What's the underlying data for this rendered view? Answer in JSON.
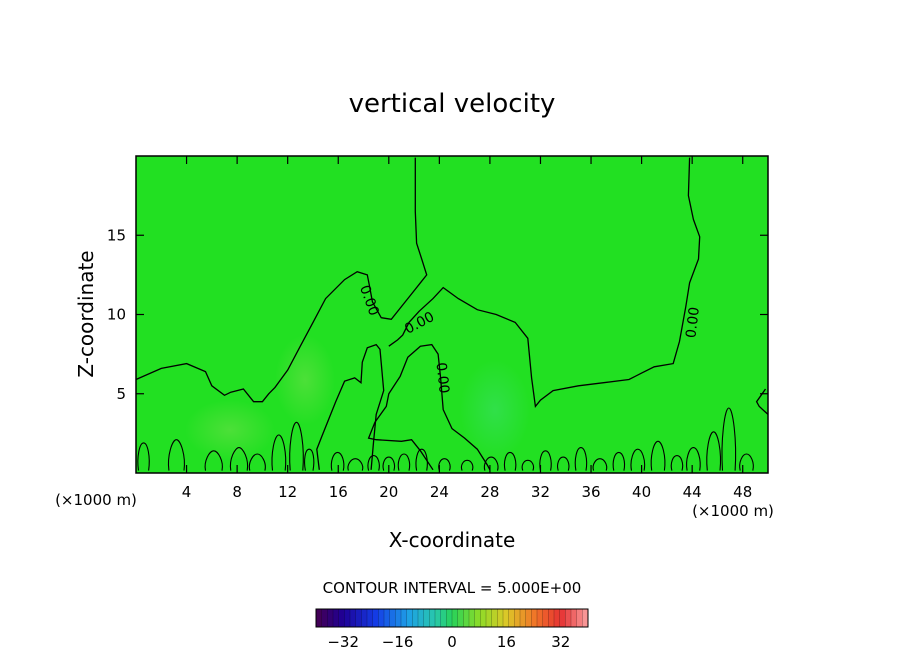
{
  "chart_data": {
    "type": "contour",
    "title": "vertical velocity",
    "xlabel": "X-coordinate",
    "ylabel": "Z-coordinate",
    "x_unit": "(×1000 m)",
    "x_unit_right": "(×1000 m)",
    "xlim": [
      0,
      50
    ],
    "ylim": [
      0,
      20
    ],
    "x_ticks": [
      4,
      8,
      12,
      16,
      20,
      24,
      28,
      32,
      36,
      40,
      44,
      48
    ],
    "x_tick_labels": [
      "4",
      "8",
      "12",
      "16",
      "20",
      "24",
      "28",
      "32",
      "36",
      "40",
      "44",
      "48"
    ],
    "y_ticks": [
      5,
      10,
      15
    ],
    "y_tick_labels": [
      "5",
      "10",
      "15"
    ],
    "contour_level_label": "0.00",
    "contour_interval_text": "CONTOUR INTERVAL =  5.000E+00",
    "colorbar": {
      "min": -40,
      "max": 40,
      "ticks": [
        -32,
        -16,
        0,
        16,
        32
      ],
      "tick_labels": [
        "−32",
        "−16",
        "0",
        "16",
        "32"
      ]
    },
    "fill_color": "#22e022",
    "zero_contours": [
      {
        "name": "upper-left",
        "points": [
          [
            0,
            5.9
          ],
          [
            2,
            6.6
          ],
          [
            4,
            6.9
          ],
          [
            5.5,
            6.4
          ],
          [
            6,
            5.5
          ],
          [
            7,
            4.9
          ],
          [
            7.5,
            5.1
          ],
          [
            8,
            5.2
          ],
          [
            8.5,
            5.3
          ],
          [
            9.3,
            4.5
          ],
          [
            10,
            4.5
          ],
          [
            10.5,
            5.0
          ],
          [
            11,
            5.4
          ],
          [
            12,
            6.5
          ],
          [
            13,
            8.0
          ],
          [
            14,
            9.5
          ],
          [
            15,
            11.0
          ],
          [
            16.5,
            12.2
          ],
          [
            17.5,
            12.7
          ],
          [
            18.3,
            12.5
          ],
          [
            18.5,
            11.7
          ],
          [
            18.7,
            10.8
          ],
          [
            19.4,
            9.8
          ],
          [
            20.2,
            9.7
          ],
          [
            21,
            10.5
          ],
          [
            21.8,
            11.3
          ],
          [
            22.5,
            12.0
          ],
          [
            23,
            12.5
          ],
          [
            22.6,
            13.5
          ],
          [
            22.2,
            14.5
          ],
          [
            22.1,
            16.5
          ],
          [
            22.1,
            19.9
          ]
        ]
      },
      {
        "name": "middle",
        "points": [
          [
            20,
            8.0
          ],
          [
            20.7,
            8.4
          ],
          [
            21.1,
            8.7
          ],
          [
            21.6,
            9.5
          ],
          [
            22.4,
            10.2
          ],
          [
            23.5,
            11.0
          ],
          [
            24.3,
            11.7
          ],
          [
            25.5,
            11.0
          ],
          [
            27,
            10.3
          ],
          [
            28.5,
            10.0
          ],
          [
            30,
            9.5
          ],
          [
            31,
            8.5
          ],
          [
            31.3,
            6.0
          ],
          [
            31.6,
            4.2
          ],
          [
            32,
            4.6
          ],
          [
            33,
            5.2
          ],
          [
            35,
            5.5
          ],
          [
            37,
            5.7
          ],
          [
            39,
            5.9
          ],
          [
            40,
            6.3
          ],
          [
            41,
            6.7
          ],
          [
            42.5,
            6.9
          ],
          [
            43,
            8.3
          ],
          [
            43.5,
            10.5
          ],
          [
            43.8,
            12.0
          ],
          [
            44.5,
            13.5
          ],
          [
            44.6,
            14.9
          ],
          [
            44.1,
            16.0
          ],
          [
            43.7,
            17.5
          ],
          [
            43.8,
            19.9
          ]
        ]
      },
      {
        "name": "lower-center",
        "points": [
          [
            23.5,
            0.2
          ],
          [
            22.5,
            1.4
          ],
          [
            21.8,
            2.1
          ],
          [
            21,
            2.0
          ],
          [
            19,
            2.1
          ],
          [
            18.4,
            2.2
          ],
          [
            18.9,
            3.2
          ],
          [
            19.8,
            4.2
          ],
          [
            20,
            5.0
          ],
          [
            20.9,
            6.1
          ],
          [
            21.5,
            7.3
          ],
          [
            22.5,
            8.0
          ],
          [
            23.4,
            8.1
          ],
          [
            23.9,
            7.5
          ],
          [
            24.1,
            6.0
          ],
          [
            24.3,
            4.0
          ],
          [
            25,
            2.8
          ],
          [
            26,
            2.2
          ],
          [
            27,
            1.5
          ],
          [
            27.8,
            0.5
          ],
          [
            28,
            0.2
          ]
        ]
      },
      {
        "name": "left-pillar",
        "points": [
          [
            14.5,
            0.2
          ],
          [
            14.3,
            1.5
          ],
          [
            14.7,
            2.3
          ],
          [
            15.3,
            3.5
          ],
          [
            15.8,
            4.5
          ],
          [
            16.5,
            5.8
          ],
          [
            17.3,
            6.0
          ],
          [
            17.8,
            5.7
          ],
          [
            17.9,
            7.0
          ],
          [
            18.3,
            7.9
          ],
          [
            19.0,
            8.1
          ],
          [
            19.3,
            7.8
          ],
          [
            19.6,
            5.2
          ],
          [
            19.0,
            3.7
          ],
          [
            18.8,
            2.0
          ],
          [
            18.6,
            0.2
          ]
        ]
      },
      {
        "name": "right-edge",
        "points": [
          [
            49.8,
            5.3
          ],
          [
            49.1,
            4.5
          ],
          [
            49.3,
            4.2
          ],
          [
            50,
            3.7
          ]
        ]
      }
    ],
    "bottom_cells": [
      {
        "x0": 0.2,
        "x1": 1.0,
        "h": 1.9
      },
      {
        "x0": 2.6,
        "x1": 3.8,
        "h": 2.1
      },
      {
        "x0": 5.5,
        "x1": 6.8,
        "h": 1.4
      },
      {
        "x0": 7.5,
        "x1": 8.8,
        "h": 1.6
      },
      {
        "x0": 9.0,
        "x1": 10.2,
        "h": 1.2
      },
      {
        "x0": 10.8,
        "x1": 11.8,
        "h": 2.4
      },
      {
        "x0": 12.2,
        "x1": 13.2,
        "h": 3.2
      },
      {
        "x0": 13.4,
        "x1": 14.0,
        "h": 1.5
      },
      {
        "x0": 15.5,
        "x1": 16.4,
        "h": 1.3
      },
      {
        "x0": 16.8,
        "x1": 17.9,
        "h": 0.9
      },
      {
        "x0": 18.4,
        "x1": 19.2,
        "h": 1.1
      },
      {
        "x0": 19.6,
        "x1": 20.4,
        "h": 1.0
      },
      {
        "x0": 20.8,
        "x1": 21.6,
        "h": 1.2
      },
      {
        "x0": 22.2,
        "x1": 23.0,
        "h": 1.5
      },
      {
        "x0": 24.0,
        "x1": 24.8,
        "h": 0.9
      },
      {
        "x0": 25.8,
        "x1": 26.6,
        "h": 0.8
      },
      {
        "x0": 27.6,
        "x1": 28.6,
        "h": 1.0
      },
      {
        "x0": 29.2,
        "x1": 30.0,
        "h": 1.3
      },
      {
        "x0": 30.6,
        "x1": 31.4,
        "h": 0.8
      },
      {
        "x0": 32.0,
        "x1": 32.8,
        "h": 1.4
      },
      {
        "x0": 33.4,
        "x1": 34.2,
        "h": 1.0
      },
      {
        "x0": 34.8,
        "x1": 35.6,
        "h": 1.6
      },
      {
        "x0": 36.2,
        "x1": 37.2,
        "h": 0.9
      },
      {
        "x0": 37.8,
        "x1": 38.6,
        "h": 1.3
      },
      {
        "x0": 39.2,
        "x1": 40.2,
        "h": 1.5
      },
      {
        "x0": 40.8,
        "x1": 41.8,
        "h": 2.0
      },
      {
        "x0": 42.4,
        "x1": 43.2,
        "h": 1.1
      },
      {
        "x0": 43.6,
        "x1": 44.6,
        "h": 1.6
      },
      {
        "x0": 45.2,
        "x1": 46.2,
        "h": 2.6
      },
      {
        "x0": 46.4,
        "x1": 47.4,
        "h": 4.1
      },
      {
        "x0": 47.8,
        "x1": 48.8,
        "h": 1.2
      }
    ],
    "contour_labels": [
      {
        "x": 18.5,
        "y": 10.9,
        "rotation": 70
      },
      {
        "x": 22.4,
        "y": 9.5,
        "rotation": -28
      },
      {
        "x": 24.3,
        "y": 6.0,
        "rotation": 84
      },
      {
        "x": 44.0,
        "y": 9.5,
        "rotation": -83
      }
    ]
  }
}
